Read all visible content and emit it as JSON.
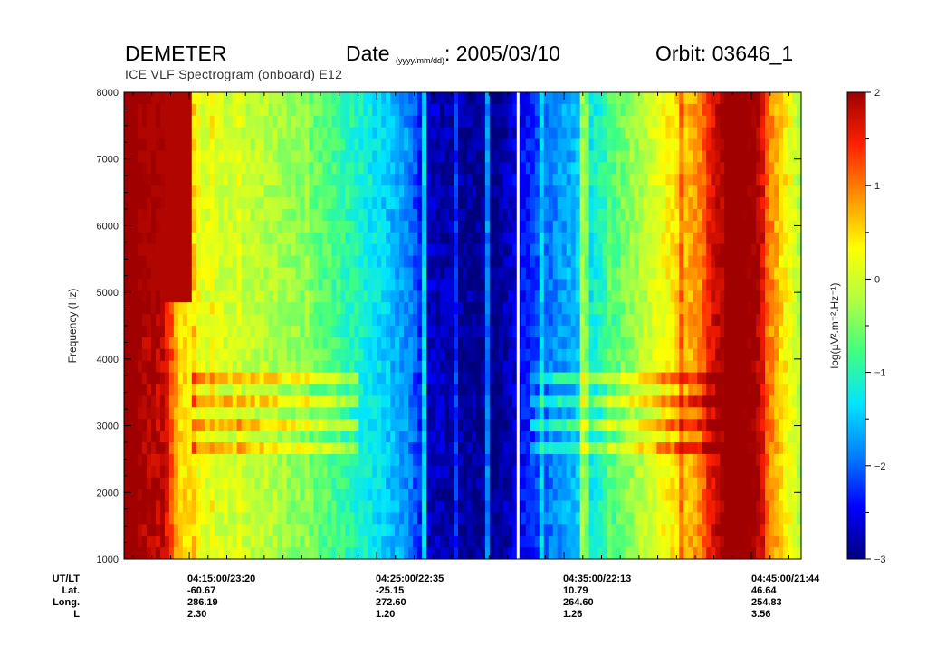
{
  "header": {
    "mission": "DEMETER",
    "date_label": "Date",
    "date_format": "(yyyy/mm/dd)",
    "date_value": ": 2005/03/10",
    "orbit": "Orbit: 03646_1",
    "subtitle": "ICE VLF Spectrogram (onboard) E12"
  },
  "chart_data": {
    "type": "heatmap",
    "title": "ICE VLF Spectrogram (onboard) E12",
    "xlabel": "",
    "ylabel": "Frequency (Hz)",
    "ylim": [
      1000,
      8000
    ],
    "yticks": [
      1000,
      2000,
      3000,
      4000,
      5000,
      6000,
      7000,
      8000
    ],
    "colorbar": {
      "label": "log(µV².m⁻².Hz⁻¹)",
      "range": [
        -3,
        2
      ],
      "ticks": [
        -3,
        -2,
        -1,
        0,
        1,
        2
      ],
      "tick_labels": [
        "−3",
        "−2",
        "−1",
        "0",
        "1",
        "2"
      ],
      "colormap": "rainbow",
      "stops": [
        "#00007f",
        "#0000ff",
        "#0080ff",
        "#00e5ff",
        "#40ff80",
        "#b0ff40",
        "#ffff00",
        "#ff9000",
        "#ff2000",
        "#a00000"
      ]
    },
    "time_profile": [
      {
        "t": 0.0,
        "level": 2.0
      },
      {
        "t": 0.02,
        "level": 2.0
      },
      {
        "t": 0.06,
        "level": 1.8
      },
      {
        "t": 0.08,
        "level": 0.6
      },
      {
        "t": 0.12,
        "level": 0.1
      },
      {
        "t": 0.22,
        "level": -0.2
      },
      {
        "t": 0.3,
        "level": -0.7
      },
      {
        "t": 0.36,
        "level": -1.2
      },
      {
        "t": 0.42,
        "level": -1.8
      },
      {
        "t": 0.45,
        "level": -2.7
      },
      {
        "t": 0.55,
        "level": -3.0
      },
      {
        "t": 0.57,
        "level": -2.7
      },
      {
        "t": 0.62,
        "level": -2.0
      },
      {
        "t": 0.68,
        "level": -1.4
      },
      {
        "t": 0.74,
        "level": -0.5
      },
      {
        "t": 0.8,
        "level": 0.3
      },
      {
        "t": 0.85,
        "level": 0.9
      },
      {
        "t": 0.9,
        "level": 2.0
      },
      {
        "t": 0.93,
        "level": 1.8
      },
      {
        "t": 0.96,
        "level": 0.8
      },
      {
        "t": 1.0,
        "level": -0.2
      }
    ],
    "gap_t": 0.58,
    "ephemeris": {
      "row_labels": [
        "UT/LT",
        "Lat.",
        "Long.",
        "L"
      ],
      "columns": [
        {
          "ut_lt": "04:15:00/23:20",
          "lat": "-60.67",
          "long": "286.19",
          "l": "2.30"
        },
        {
          "ut_lt": "04:25:00/22:35",
          "lat": "-25.15",
          "long": "272.60",
          "l": "1.20"
        },
        {
          "ut_lt": "04:35:00/22:13",
          "lat": "10.79",
          "long": "264.60",
          "l": "1.26"
        },
        {
          "ut_lt": "04:45:00/21:44",
          "lat": "46.64",
          "long": "254.83",
          "l": "3.56"
        }
      ]
    }
  }
}
